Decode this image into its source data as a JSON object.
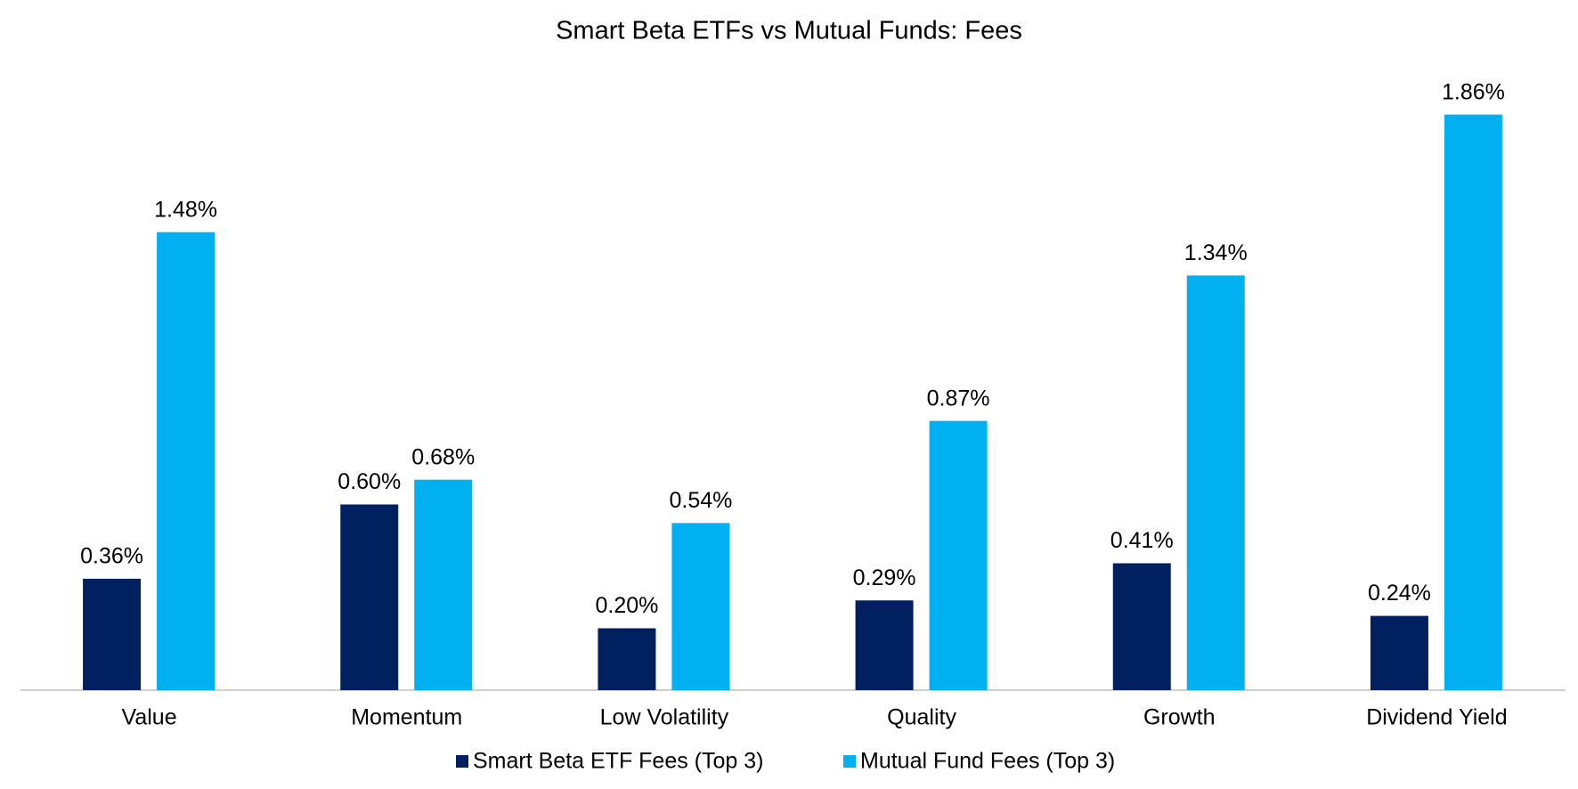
{
  "chart_data": {
    "type": "bar",
    "title": "Smart Beta ETFs vs Mutual Funds: Fees",
    "categories": [
      "Value",
      "Momentum",
      "Low Volatility",
      "Quality",
      "Growth",
      "Dividend Yield"
    ],
    "series": [
      {
        "name": "Smart Beta ETF Fees (Top 3)",
        "color": "#002060",
        "values": [
          0.36,
          0.6,
          0.2,
          0.29,
          0.41,
          0.24
        ],
        "value_labels": [
          "0.36%",
          "0.60%",
          "0.20%",
          "0.29%",
          "0.41%",
          "0.24%"
        ]
      },
      {
        "name": "Mutual Fund Fees (Top 3)",
        "color": "#00B0F0",
        "values": [
          1.48,
          0.68,
          0.54,
          0.87,
          1.34,
          1.86
        ],
        "value_labels": [
          "1.48%",
          "0.68%",
          "0.54%",
          "0.87%",
          "1.34%",
          "1.86%"
        ]
      }
    ],
    "ylim": [
      0,
      2
    ],
    "grid": false,
    "legend": "bottom"
  }
}
